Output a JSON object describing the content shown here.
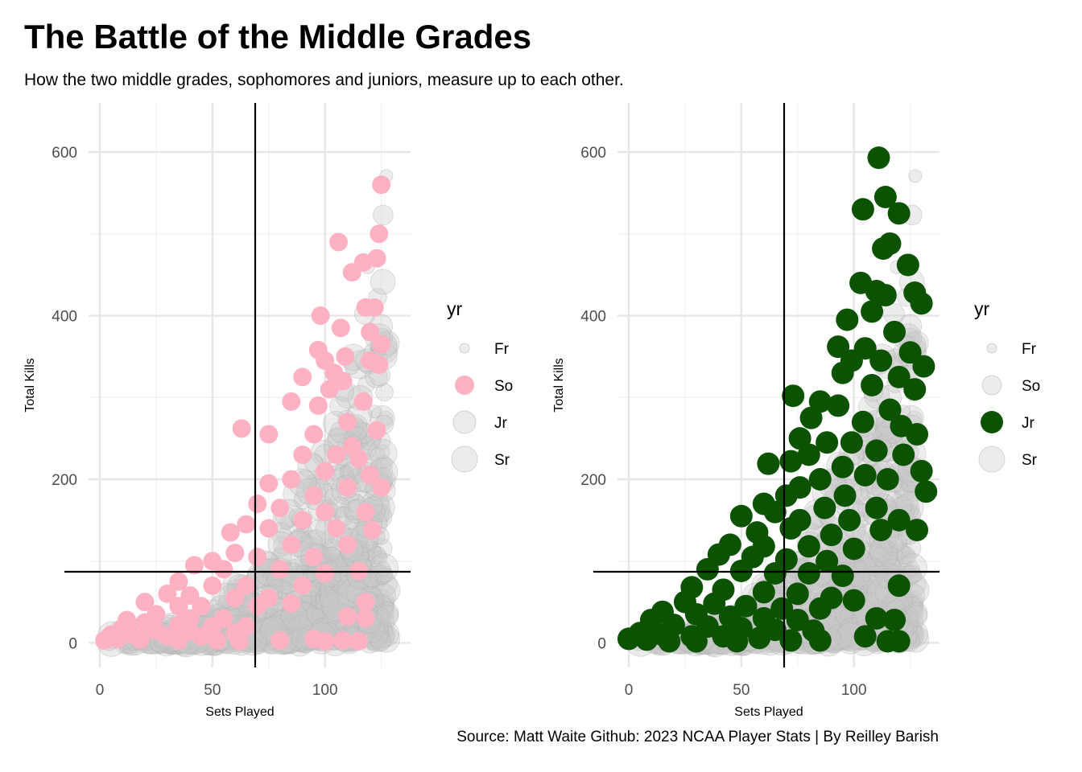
{
  "title": "The Battle of the Middle Grades",
  "subtitle": "How the two middle grades, sophomores and juniors, measure up to each other.",
  "caption": "Source: Matt Waite Github: 2023 NCAA Player Stats | By Reilley Barish",
  "colors": {
    "background_points": "#c8c8c8",
    "so": "#ffb1c4",
    "jr": "#0b5300",
    "reference_lines": "#000000",
    "grid": "#e6e6e6"
  },
  "chart_data": [
    {
      "type": "scatter",
      "highlight": "So",
      "highlight_color": "#ffb1c4",
      "xlabel": "Sets Played",
      "ylabel": "Total Kills",
      "xlim": [
        -5,
        138
      ],
      "ylim": [
        -30,
        660
      ],
      "x_ticks": [
        0,
        50,
        100
      ],
      "y_ticks": [
        0,
        200,
        400,
        600
      ],
      "grid": true,
      "reference_lines": {
        "x": 69,
        "y": 87
      },
      "legend": {
        "title": "yr",
        "position": "right",
        "entries": [
          "Fr",
          "So",
          "Jr",
          "Sr"
        ]
      },
      "series": [
        {
          "name": "So",
          "points": [
            [
              125,
              560
            ],
            [
              106,
              490
            ],
            [
              124,
              500
            ],
            [
              123,
              470
            ],
            [
              117,
              465
            ],
            [
              112,
              453
            ],
            [
              98,
              400
            ],
            [
              118,
              410
            ],
            [
              122,
              410
            ],
            [
              107,
              385
            ],
            [
              120,
              380
            ],
            [
              97,
              358
            ],
            [
              109,
              350
            ],
            [
              125,
              365
            ],
            [
              100,
              345
            ],
            [
              120,
              345
            ],
            [
              104,
              330
            ],
            [
              90,
              325
            ],
            [
              108,
              320
            ],
            [
              124,
              340
            ],
            [
              102,
              310
            ],
            [
              85,
              295
            ],
            [
              97,
              290
            ],
            [
              117,
              295
            ],
            [
              110,
              270
            ],
            [
              63,
              262
            ],
            [
              75,
              255
            ],
            [
              95,
              255
            ],
            [
              112,
              240
            ],
            [
              123,
              260
            ],
            [
              115,
              225
            ],
            [
              105,
              230
            ],
            [
              90,
              230
            ],
            [
              100,
              210
            ],
            [
              120,
              205
            ],
            [
              85,
              200
            ],
            [
              75,
              195
            ],
            [
              110,
              190
            ],
            [
              125,
              190
            ],
            [
              95,
              180
            ],
            [
              70,
              170
            ],
            [
              80,
              165
            ],
            [
              100,
              160
            ],
            [
              118,
              160
            ],
            [
              90,
              150
            ],
            [
              65,
              145
            ],
            [
              75,
              140
            ],
            [
              105,
              140
            ],
            [
              58,
              135
            ],
            [
              85,
              120
            ],
            [
              110,
              120
            ],
            [
              121,
              138
            ],
            [
              60,
              110
            ],
            [
              70,
              105
            ],
            [
              95,
              105
            ],
            [
              50,
              100
            ],
            [
              42,
              95
            ],
            [
              55,
              90
            ],
            [
              80,
              90
            ],
            [
              100,
              85
            ],
            [
              115,
              88
            ],
            [
              35,
              75
            ],
            [
              50,
              70
            ],
            [
              65,
              70
            ],
            [
              90,
              70
            ],
            [
              30,
              60
            ],
            [
              40,
              58
            ],
            [
              60,
              55
            ],
            [
              75,
              55
            ],
            [
              20,
              50
            ],
            [
              35,
              45
            ],
            [
              45,
              45
            ],
            [
              70,
              45
            ],
            [
              85,
              48
            ],
            [
              118,
              50
            ],
            [
              25,
              35
            ],
            [
              40,
              30
            ],
            [
              55,
              30
            ],
            [
              12,
              28
            ],
            [
              20,
              25
            ],
            [
              35,
              22
            ],
            [
              50,
              20
            ],
            [
              65,
              20
            ],
            [
              110,
              32
            ],
            [
              118,
              30
            ],
            [
              10,
              18
            ],
            [
              25,
              15
            ],
            [
              40,
              14
            ],
            [
              60,
              12
            ],
            [
              5,
              10
            ],
            [
              15,
              10
            ],
            [
              30,
              8
            ],
            [
              45,
              8
            ],
            [
              2,
              3
            ],
            [
              8,
              5
            ],
            [
              18,
              4
            ],
            [
              35,
              3
            ],
            [
              52,
              3
            ],
            [
              62,
              2
            ],
            [
              80,
              3
            ],
            [
              100,
              2
            ],
            [
              108,
              3
            ],
            [
              115,
              2
            ],
            [
              95,
              5
            ]
          ]
        }
      ]
    },
    {
      "type": "scatter",
      "highlight": "Jr",
      "highlight_color": "#0b5300",
      "xlabel": "Sets Played",
      "ylabel": "Total Kills",
      "xlim": [
        -5,
        138
      ],
      "ylim": [
        -30,
        660
      ],
      "x_ticks": [
        0,
        50,
        100
      ],
      "y_ticks": [
        0,
        200,
        400,
        600
      ],
      "grid": true,
      "reference_lines": {
        "x": 69,
        "y": 87
      },
      "legend": {
        "title": "yr",
        "position": "right",
        "entries": [
          "Fr",
          "So",
          "Jr",
          "Sr"
        ]
      },
      "series": [
        {
          "name": "Jr",
          "points": [
            [
              111,
              593
            ],
            [
              114,
              545
            ],
            [
              104,
              530
            ],
            [
              120,
              525
            ],
            [
              116,
              488
            ],
            [
              113,
              482
            ],
            [
              124,
              462
            ],
            [
              103,
              440
            ],
            [
              110,
              430
            ],
            [
              114,
              425
            ],
            [
              127,
              428
            ],
            [
              130,
              415
            ],
            [
              108,
              405
            ],
            [
              97,
              395
            ],
            [
              118,
              380
            ],
            [
              93,
              362
            ],
            [
              105,
              360
            ],
            [
              125,
              355
            ],
            [
              99,
              345
            ],
            [
              112,
              345
            ],
            [
              131,
              338
            ],
            [
              95,
              330
            ],
            [
              120,
              325
            ],
            [
              108,
              315
            ],
            [
              127,
              310
            ],
            [
              73,
              302
            ],
            [
              85,
              295
            ],
            [
              93,
              290
            ],
            [
              116,
              285
            ],
            [
              81,
              275
            ],
            [
              104,
              270
            ],
            [
              121,
              265
            ],
            [
              76,
              250
            ],
            [
              88,
              245
            ],
            [
              99,
              245
            ],
            [
              128,
              255
            ],
            [
              110,
              235
            ],
            [
              80,
              230
            ],
            [
              122,
              230
            ],
            [
              72,
              222
            ],
            [
              62,
              219
            ],
            [
              95,
              215
            ],
            [
              130,
              210
            ],
            [
              85,
              200
            ],
            [
              105,
              205
            ],
            [
              115,
              200
            ],
            [
              76,
              190
            ],
            [
              70,
              180
            ],
            [
              96,
              180
            ],
            [
              132,
              185
            ],
            [
              60,
              170
            ],
            [
              87,
              165
            ],
            [
              110,
              165
            ],
            [
              65,
              160
            ],
            [
              50,
              155
            ],
            [
              76,
              150
            ],
            [
              98,
              150
            ],
            [
              120,
              150
            ],
            [
              57,
              135
            ],
            [
              72,
              140
            ],
            [
              90,
              132
            ],
            [
              112,
              138
            ],
            [
              128,
              138
            ],
            [
              45,
              120
            ],
            [
              60,
              118
            ],
            [
              80,
              118
            ],
            [
              100,
              115
            ],
            [
              40,
              108
            ],
            [
              55,
              105
            ],
            [
              70,
              102
            ],
            [
              88,
              100
            ],
            [
              35,
              90
            ],
            [
              50,
              88
            ],
            [
              65,
              85
            ],
            [
              80,
              85
            ],
            [
              95,
              82
            ],
            [
              120,
              70
            ],
            [
              28,
              68
            ],
            [
              42,
              65
            ],
            [
              60,
              62
            ],
            [
              75,
              60
            ],
            [
              90,
              55
            ],
            [
              100,
              52
            ],
            [
              25,
              50
            ],
            [
              38,
              48
            ],
            [
              52,
              45
            ],
            [
              68,
              42
            ],
            [
              85,
              42
            ],
            [
              15,
              38
            ],
            [
              30,
              35
            ],
            [
              45,
              32
            ],
            [
              60,
              30
            ],
            [
              75,
              28
            ],
            [
              110,
              30
            ],
            [
              118,
              28
            ],
            [
              10,
              28
            ],
            [
              20,
              22
            ],
            [
              35,
              20
            ],
            [
              50,
              18
            ],
            [
              65,
              16
            ],
            [
              82,
              15
            ],
            [
              5,
              12
            ],
            [
              15,
              10
            ],
            [
              28,
              8
            ],
            [
              42,
              8
            ],
            [
              58,
              6
            ],
            [
              0,
              5
            ],
            [
              8,
              4
            ],
            [
              18,
              2
            ],
            [
              30,
              2
            ],
            [
              48,
              2
            ],
            [
              72,
              3
            ],
            [
              85,
              3
            ],
            [
              105,
              8
            ],
            [
              115,
              2
            ],
            [
              120,
              2
            ]
          ]
        }
      ]
    }
  ]
}
